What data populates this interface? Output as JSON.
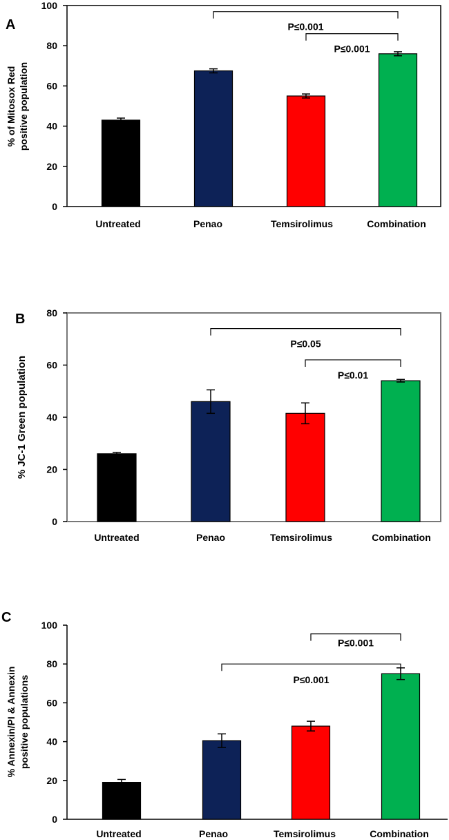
{
  "chart_data": [
    {
      "panel": "A",
      "type": "bar",
      "categories": [
        "Untreated",
        "Penao",
        "Temsirolimus",
        "Combination"
      ],
      "values": [
        43,
        67.5,
        55,
        76
      ],
      "errors": [
        1,
        1,
        1,
        1
      ],
      "colors": [
        "#000000",
        "#0d2257",
        "#ff0000",
        "#00b050"
      ],
      "ylabel_lines": [
        "% of Mitosox Red",
        "positive population"
      ],
      "ylim": [
        0,
        100
      ],
      "yticks": [
        0,
        20,
        40,
        60,
        80,
        100
      ],
      "annotations": [
        {
          "from": 1,
          "to": 3,
          "level": 97,
          "label": "P≤0.001"
        },
        {
          "from": 2,
          "to": 3,
          "level": 86,
          "label": "P≤0.001"
        }
      ]
    },
    {
      "panel": "B",
      "type": "bar",
      "categories": [
        "Untreated",
        "Penao",
        "Temsirolimus",
        "Combination"
      ],
      "values": [
        26,
        46,
        41.5,
        54
      ],
      "errors": [
        0.5,
        4.5,
        4,
        0.5
      ],
      "colors": [
        "#000000",
        "#0d2257",
        "#ff0000",
        "#00b050"
      ],
      "ylabel_lines": [
        "% JC-1 Green  population"
      ],
      "ylim": [
        0,
        80
      ],
      "yticks": [
        0,
        20,
        40,
        60,
        80
      ],
      "annotations": [
        {
          "from": 1,
          "to": 3,
          "level": 74,
          "label": "P≤0.05"
        },
        {
          "from": 2,
          "to": 3,
          "level": 62,
          "label": "P≤0.01"
        }
      ]
    },
    {
      "panel": "C",
      "type": "bar",
      "categories": [
        "Untreated",
        "Penao",
        "Temsirolimus",
        "Combination"
      ],
      "values": [
        19,
        40.5,
        48,
        75
      ],
      "errors": [
        1.5,
        3.5,
        2.5,
        3
      ],
      "colors": [
        "#000000",
        "#0d2257",
        "#ff0000",
        "#00b050"
      ],
      "ylabel_lines": [
        "% Annexin/PI & Annexin",
        "positive populations"
      ],
      "ylim": [
        0,
        100
      ],
      "yticks": [
        0,
        20,
        40,
        60,
        80,
        100
      ],
      "annotations": [
        {
          "from": 2,
          "to": 3,
          "level": 95.5,
          "label": "P≤0.001",
          "label_pos": "inside"
        },
        {
          "from": 1,
          "to": 3,
          "level": 80,
          "label": "P≤0.001",
          "label_pos": "below"
        }
      ]
    }
  ]
}
